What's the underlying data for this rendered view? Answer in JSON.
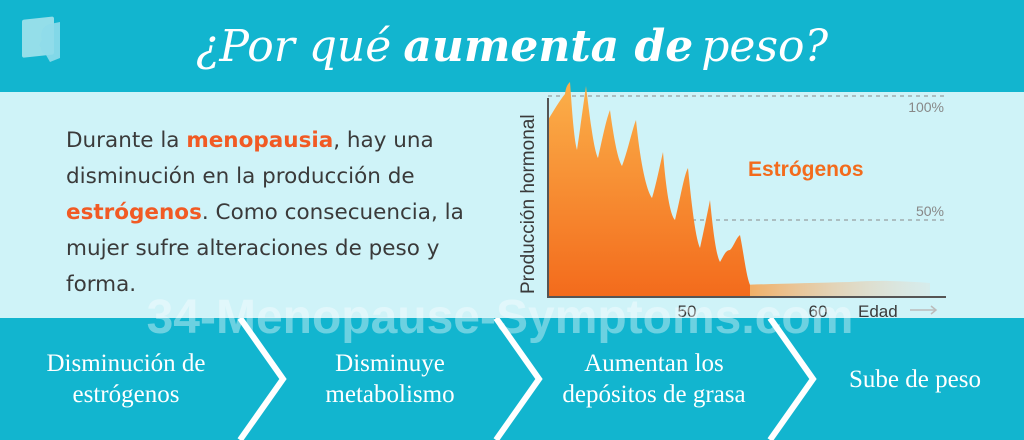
{
  "header": {
    "title_part1": "¿Por qué",
    "title_part2": "aumenta de",
    "title_part3": "peso?",
    "logo_icon": "face-profile-icon",
    "background_color": "#12b5cf"
  },
  "intro": {
    "t1": "Durante la ",
    "h1": "menopausia",
    "t2": ", hay una disminución en la producción de ",
    "h2": "estrógenos",
    "t3": ". Como consecuencia, la mujer sufre alteraciones de peso y forma.",
    "highlight_color": "#f15a24"
  },
  "watermark": "34-Menopause-Symptoms.com",
  "chart_data": {
    "type": "area",
    "ylabel": "Producción hormonal",
    "xlabel": "Edad",
    "series_label": "Estrógenos",
    "x_ticks": [
      "50",
      "60"
    ],
    "y_ticks": [
      "100%",
      "50%"
    ],
    "grid": "dashed reference lines at 50% and 100%",
    "color": "#f7931e"
  },
  "steps": [
    {
      "line1": "Disminución de",
      "line2": "estrógenos"
    },
    {
      "line1": "Disminuye",
      "line2": "metabolismo"
    },
    {
      "line1": "Aumentan los",
      "line2": "depósitos de grasa"
    },
    {
      "line1": "Sube de peso",
      "line2": ""
    }
  ]
}
